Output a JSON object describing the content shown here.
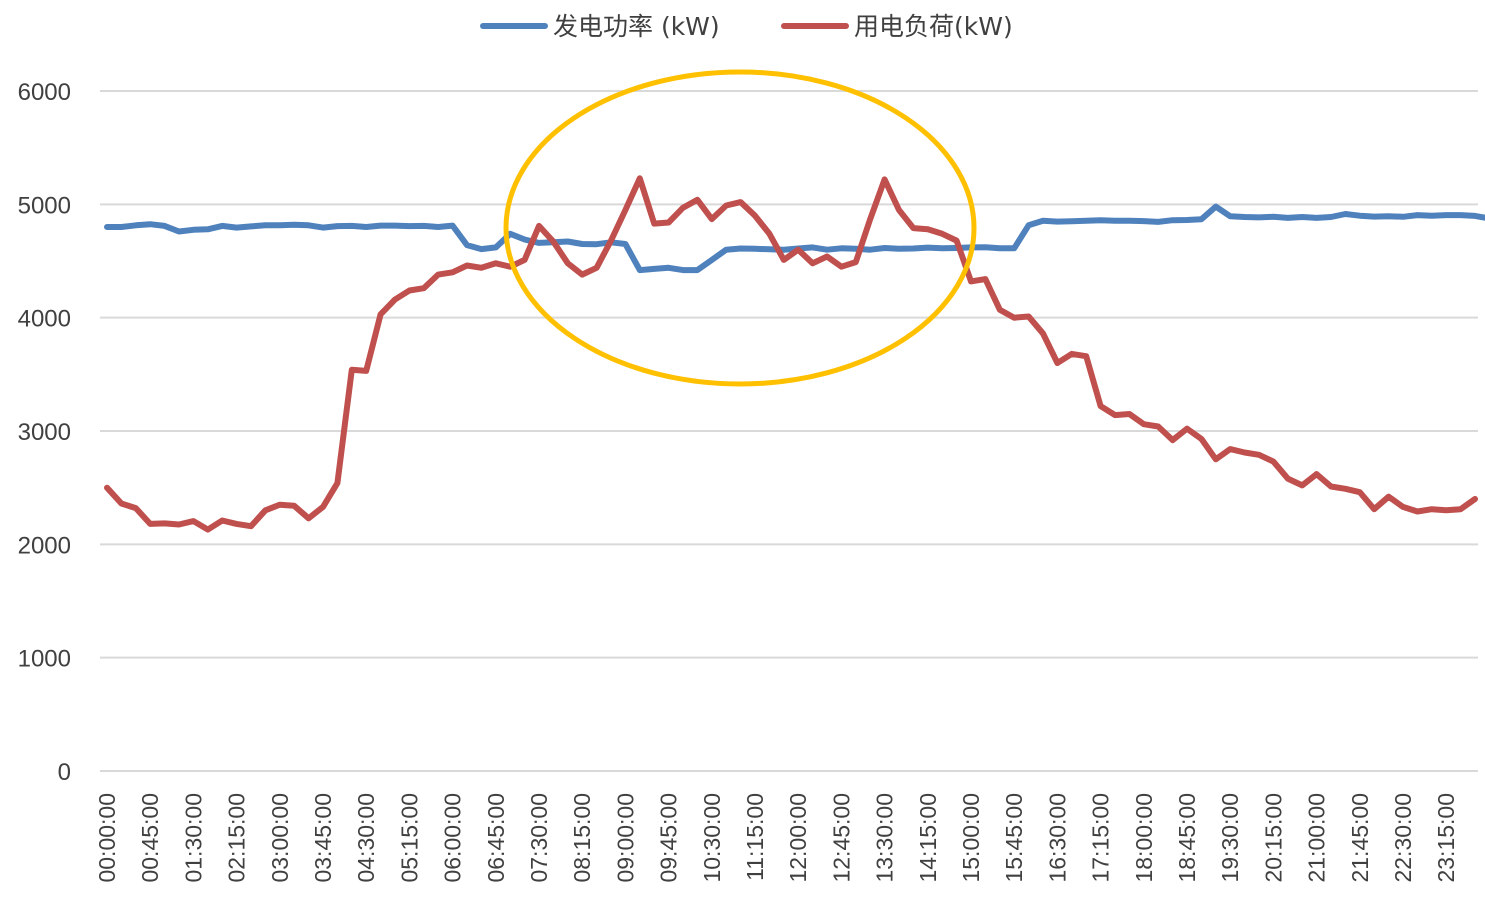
{
  "chart_data": {
    "type": "line",
    "title": "",
    "xlabel": "",
    "ylabel": "",
    "ylim": [
      0,
      6000
    ],
    "yticks": [
      0,
      1000,
      2000,
      3000,
      4000,
      5000,
      6000
    ],
    "grid": true,
    "legend_position": "top",
    "x_interval_minutes": 15,
    "x_tick_labels": [
      "00:00:00",
      "00:45:00",
      "01:30:00",
      "02:15:00",
      "03:00:00",
      "03:45:00",
      "04:30:00",
      "05:15:00",
      "06:00:00",
      "06:45:00",
      "07:30:00",
      "08:15:00",
      "09:00:00",
      "09:45:00",
      "10:30:00",
      "11:15:00",
      "12:00:00",
      "12:45:00",
      "13:30:00",
      "14:15:00",
      "15:00:00",
      "15:45:00",
      "16:30:00",
      "17:15:00",
      "18:00:00",
      "18:45:00",
      "19:30:00",
      "20:15:00",
      "21:00:00",
      "21:45:00",
      "22:30:00",
      "23:15:00"
    ],
    "series": [
      {
        "name": "发电功率 (kW)",
        "color": "#4F81BD",
        "values": [
          4800,
          4800,
          4815,
          4825,
          4810,
          4760,
          4775,
          4780,
          4810,
          4795,
          4805,
          4815,
          4815,
          4820,
          4815,
          4795,
          4808,
          4810,
          4800,
          4812,
          4812,
          4808,
          4810,
          4800,
          4812,
          4640,
          4605,
          4620,
          4740,
          4690,
          4660,
          4665,
          4672,
          4650,
          4648,
          4665,
          4650,
          4420,
          4430,
          4440,
          4420,
          4420,
          4510,
          4600,
          4610,
          4608,
          4603,
          4600,
          4610,
          4620,
          4600,
          4612,
          4608,
          4600,
          4615,
          4608,
          4610,
          4618,
          4612,
          4615,
          4620,
          4622,
          4612,
          4612,
          4815,
          4855,
          4848,
          4850,
          4855,
          4860,
          4855,
          4855,
          4852,
          4845,
          4860,
          4862,
          4868,
          4980,
          4895,
          4888,
          4885,
          4890,
          4880,
          4888,
          4880,
          4888,
          4915,
          4900,
          4892,
          4895,
          4890,
          4905,
          4900,
          4905,
          4905,
          4898,
          4875,
          4910
        ]
      },
      {
        "name": "用电负荷(kW)",
        "color": "#C0504D",
        "values": [
          2500,
          2360,
          2320,
          2180,
          2185,
          2175,
          2205,
          2130,
          2210,
          2180,
          2160,
          2300,
          2350,
          2340,
          2230,
          2330,
          2540,
          3540,
          3530,
          4030,
          4160,
          4240,
          4260,
          4380,
          4400,
          4460,
          4440,
          4480,
          4450,
          4510,
          4810,
          4670,
          4480,
          4380,
          4440,
          4680,
          4950,
          5230,
          4830,
          4840,
          4970,
          5040,
          4870,
          4990,
          5020,
          4900,
          4740,
          4510,
          4600,
          4480,
          4540,
          4450,
          4490,
          4870,
          5220,
          4950,
          4790,
          4780,
          4740,
          4680,
          4320,
          4340,
          4070,
          4000,
          4010,
          3860,
          3600,
          3680,
          3660,
          3220,
          3140,
          3150,
          3060,
          3040,
          2920,
          3020,
          2930,
          2750,
          2840,
          2810,
          2790,
          2730,
          2580,
          2520,
          2620,
          2510,
          2490,
          2460,
          2310,
          2420,
          2330,
          2290,
          2310,
          2300,
          2310,
          2400
        ]
      }
    ]
  },
  "annotation": {
    "type": "ellipse",
    "color": "#FFC000"
  }
}
